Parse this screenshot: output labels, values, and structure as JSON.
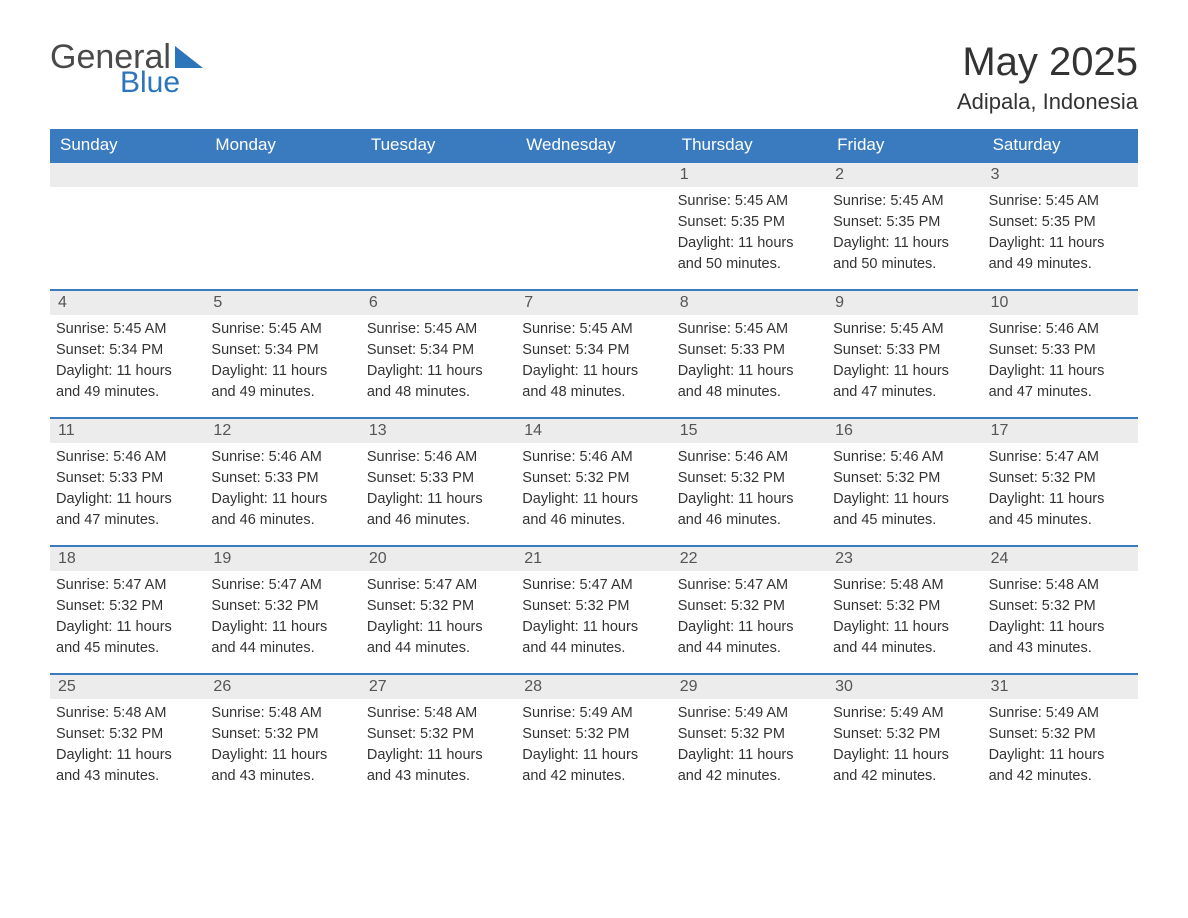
{
  "logo": {
    "word1": "General",
    "word2": "Blue"
  },
  "title": "May 2025",
  "location": "Adipala, Indonesia",
  "colors": {
    "header_bg": "#3a7bbf",
    "header_text": "#ffffff",
    "daynum_bg": "#ececec",
    "border": "#3a7bbf",
    "logo_blue": "#2d75bb",
    "text": "#333333"
  },
  "days_of_week": [
    "Sunday",
    "Monday",
    "Tuesday",
    "Wednesday",
    "Thursday",
    "Friday",
    "Saturday"
  ],
  "weeks": [
    [
      {
        "n": "",
        "sr": "",
        "ss": "",
        "dl1": "",
        "dl2": ""
      },
      {
        "n": "",
        "sr": "",
        "ss": "",
        "dl1": "",
        "dl2": ""
      },
      {
        "n": "",
        "sr": "",
        "ss": "",
        "dl1": "",
        "dl2": ""
      },
      {
        "n": "",
        "sr": "",
        "ss": "",
        "dl1": "",
        "dl2": ""
      },
      {
        "n": "1",
        "sr": "Sunrise: 5:45 AM",
        "ss": "Sunset: 5:35 PM",
        "dl1": "Daylight: 11 hours",
        "dl2": "and 50 minutes."
      },
      {
        "n": "2",
        "sr": "Sunrise: 5:45 AM",
        "ss": "Sunset: 5:35 PM",
        "dl1": "Daylight: 11 hours",
        "dl2": "and 50 minutes."
      },
      {
        "n": "3",
        "sr": "Sunrise: 5:45 AM",
        "ss": "Sunset: 5:35 PM",
        "dl1": "Daylight: 11 hours",
        "dl2": "and 49 minutes."
      }
    ],
    [
      {
        "n": "4",
        "sr": "Sunrise: 5:45 AM",
        "ss": "Sunset: 5:34 PM",
        "dl1": "Daylight: 11 hours",
        "dl2": "and 49 minutes."
      },
      {
        "n": "5",
        "sr": "Sunrise: 5:45 AM",
        "ss": "Sunset: 5:34 PM",
        "dl1": "Daylight: 11 hours",
        "dl2": "and 49 minutes."
      },
      {
        "n": "6",
        "sr": "Sunrise: 5:45 AM",
        "ss": "Sunset: 5:34 PM",
        "dl1": "Daylight: 11 hours",
        "dl2": "and 48 minutes."
      },
      {
        "n": "7",
        "sr": "Sunrise: 5:45 AM",
        "ss": "Sunset: 5:34 PM",
        "dl1": "Daylight: 11 hours",
        "dl2": "and 48 minutes."
      },
      {
        "n": "8",
        "sr": "Sunrise: 5:45 AM",
        "ss": "Sunset: 5:33 PM",
        "dl1": "Daylight: 11 hours",
        "dl2": "and 48 minutes."
      },
      {
        "n": "9",
        "sr": "Sunrise: 5:45 AM",
        "ss": "Sunset: 5:33 PM",
        "dl1": "Daylight: 11 hours",
        "dl2": "and 47 minutes."
      },
      {
        "n": "10",
        "sr": "Sunrise: 5:46 AM",
        "ss": "Sunset: 5:33 PM",
        "dl1": "Daylight: 11 hours",
        "dl2": "and 47 minutes."
      }
    ],
    [
      {
        "n": "11",
        "sr": "Sunrise: 5:46 AM",
        "ss": "Sunset: 5:33 PM",
        "dl1": "Daylight: 11 hours",
        "dl2": "and 47 minutes."
      },
      {
        "n": "12",
        "sr": "Sunrise: 5:46 AM",
        "ss": "Sunset: 5:33 PM",
        "dl1": "Daylight: 11 hours",
        "dl2": "and 46 minutes."
      },
      {
        "n": "13",
        "sr": "Sunrise: 5:46 AM",
        "ss": "Sunset: 5:33 PM",
        "dl1": "Daylight: 11 hours",
        "dl2": "and 46 minutes."
      },
      {
        "n": "14",
        "sr": "Sunrise: 5:46 AM",
        "ss": "Sunset: 5:32 PM",
        "dl1": "Daylight: 11 hours",
        "dl2": "and 46 minutes."
      },
      {
        "n": "15",
        "sr": "Sunrise: 5:46 AM",
        "ss": "Sunset: 5:32 PM",
        "dl1": "Daylight: 11 hours",
        "dl2": "and 46 minutes."
      },
      {
        "n": "16",
        "sr": "Sunrise: 5:46 AM",
        "ss": "Sunset: 5:32 PM",
        "dl1": "Daylight: 11 hours",
        "dl2": "and 45 minutes."
      },
      {
        "n": "17",
        "sr": "Sunrise: 5:47 AM",
        "ss": "Sunset: 5:32 PM",
        "dl1": "Daylight: 11 hours",
        "dl2": "and 45 minutes."
      }
    ],
    [
      {
        "n": "18",
        "sr": "Sunrise: 5:47 AM",
        "ss": "Sunset: 5:32 PM",
        "dl1": "Daylight: 11 hours",
        "dl2": "and 45 minutes."
      },
      {
        "n": "19",
        "sr": "Sunrise: 5:47 AM",
        "ss": "Sunset: 5:32 PM",
        "dl1": "Daylight: 11 hours",
        "dl2": "and 44 minutes."
      },
      {
        "n": "20",
        "sr": "Sunrise: 5:47 AM",
        "ss": "Sunset: 5:32 PM",
        "dl1": "Daylight: 11 hours",
        "dl2": "and 44 minutes."
      },
      {
        "n": "21",
        "sr": "Sunrise: 5:47 AM",
        "ss": "Sunset: 5:32 PM",
        "dl1": "Daylight: 11 hours",
        "dl2": "and 44 minutes."
      },
      {
        "n": "22",
        "sr": "Sunrise: 5:47 AM",
        "ss": "Sunset: 5:32 PM",
        "dl1": "Daylight: 11 hours",
        "dl2": "and 44 minutes."
      },
      {
        "n": "23",
        "sr": "Sunrise: 5:48 AM",
        "ss": "Sunset: 5:32 PM",
        "dl1": "Daylight: 11 hours",
        "dl2": "and 44 minutes."
      },
      {
        "n": "24",
        "sr": "Sunrise: 5:48 AM",
        "ss": "Sunset: 5:32 PM",
        "dl1": "Daylight: 11 hours",
        "dl2": "and 43 minutes."
      }
    ],
    [
      {
        "n": "25",
        "sr": "Sunrise: 5:48 AM",
        "ss": "Sunset: 5:32 PM",
        "dl1": "Daylight: 11 hours",
        "dl2": "and 43 minutes."
      },
      {
        "n": "26",
        "sr": "Sunrise: 5:48 AM",
        "ss": "Sunset: 5:32 PM",
        "dl1": "Daylight: 11 hours",
        "dl2": "and 43 minutes."
      },
      {
        "n": "27",
        "sr": "Sunrise: 5:48 AM",
        "ss": "Sunset: 5:32 PM",
        "dl1": "Daylight: 11 hours",
        "dl2": "and 43 minutes."
      },
      {
        "n": "28",
        "sr": "Sunrise: 5:49 AM",
        "ss": "Sunset: 5:32 PM",
        "dl1": "Daylight: 11 hours",
        "dl2": "and 42 minutes."
      },
      {
        "n": "29",
        "sr": "Sunrise: 5:49 AM",
        "ss": "Sunset: 5:32 PM",
        "dl1": "Daylight: 11 hours",
        "dl2": "and 42 minutes."
      },
      {
        "n": "30",
        "sr": "Sunrise: 5:49 AM",
        "ss": "Sunset: 5:32 PM",
        "dl1": "Daylight: 11 hours",
        "dl2": "and 42 minutes."
      },
      {
        "n": "31",
        "sr": "Sunrise: 5:49 AM",
        "ss": "Sunset: 5:32 PM",
        "dl1": "Daylight: 11 hours",
        "dl2": "and 42 minutes."
      }
    ]
  ]
}
